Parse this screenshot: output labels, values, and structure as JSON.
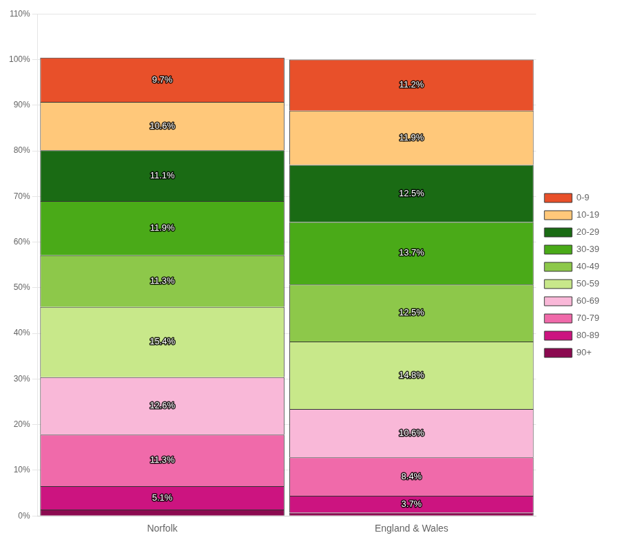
{
  "chart_data": {
    "type": "bar",
    "stacked": true,
    "grid": true,
    "legend": "right",
    "categories": [
      "Norfolk",
      "England & Wales"
    ],
    "series": [
      {
        "name": "90+",
        "color": "#8b0a50",
        "values": [
          1.4,
          0.7
        ],
        "value_labels": [
          null,
          null
        ]
      },
      {
        "name": "80-89",
        "color": "#cc1480",
        "values": [
          5.1,
          3.7
        ],
        "value_labels": [
          "5.1%",
          "3.7%"
        ]
      },
      {
        "name": "70-79",
        "color": "#f06aaa",
        "values": [
          11.3,
          8.4
        ],
        "value_labels": [
          "11.3%",
          "8.4%"
        ]
      },
      {
        "name": "60-69",
        "color": "#f9b8d8",
        "values": [
          12.6,
          10.6
        ],
        "value_labels": [
          "12.6%",
          "10.6%"
        ]
      },
      {
        "name": "50-59",
        "color": "#c8e88a",
        "values": [
          15.4,
          14.8
        ],
        "value_labels": [
          "15.4%",
          "14.8%"
        ]
      },
      {
        "name": "40-49",
        "color": "#8dc84a",
        "values": [
          11.3,
          12.5
        ],
        "value_labels": [
          "11.3%",
          "12.5%"
        ]
      },
      {
        "name": "30-39",
        "color": "#4aaa18",
        "values": [
          11.9,
          13.7
        ],
        "value_labels": [
          "11.9%",
          "13.7%"
        ]
      },
      {
        "name": "20-29",
        "color": "#1a6b14",
        "values": [
          11.1,
          12.5
        ],
        "value_labels": [
          "11.1%",
          "12.5%"
        ]
      },
      {
        "name": "10-19",
        "color": "#ffc87a",
        "values": [
          10.6,
          11.9
        ],
        "value_labels": [
          "10.6%",
          "11.9%"
        ]
      },
      {
        "name": "0-9",
        "color": "#e8502a",
        "values": [
          9.7,
          11.2
        ],
        "value_labels": [
          "9.7%",
          "11.2%"
        ]
      }
    ],
    "ylim": [
      0,
      110
    ],
    "yticks": [
      {
        "value": 0,
        "label": "0%"
      },
      {
        "value": 10,
        "label": "10%"
      },
      {
        "value": 20,
        "label": "20%"
      },
      {
        "value": 30,
        "label": "30%"
      },
      {
        "value": 40,
        "label": "40%"
      },
      {
        "value": 50,
        "label": "50%"
      },
      {
        "value": 60,
        "label": "60%"
      },
      {
        "value": 70,
        "label": "70%"
      },
      {
        "value": 80,
        "label": "80%"
      },
      {
        "value": 90,
        "label": "90%"
      },
      {
        "value": 100,
        "label": "100%"
      },
      {
        "value": 110,
        "label": "110%"
      }
    ]
  }
}
